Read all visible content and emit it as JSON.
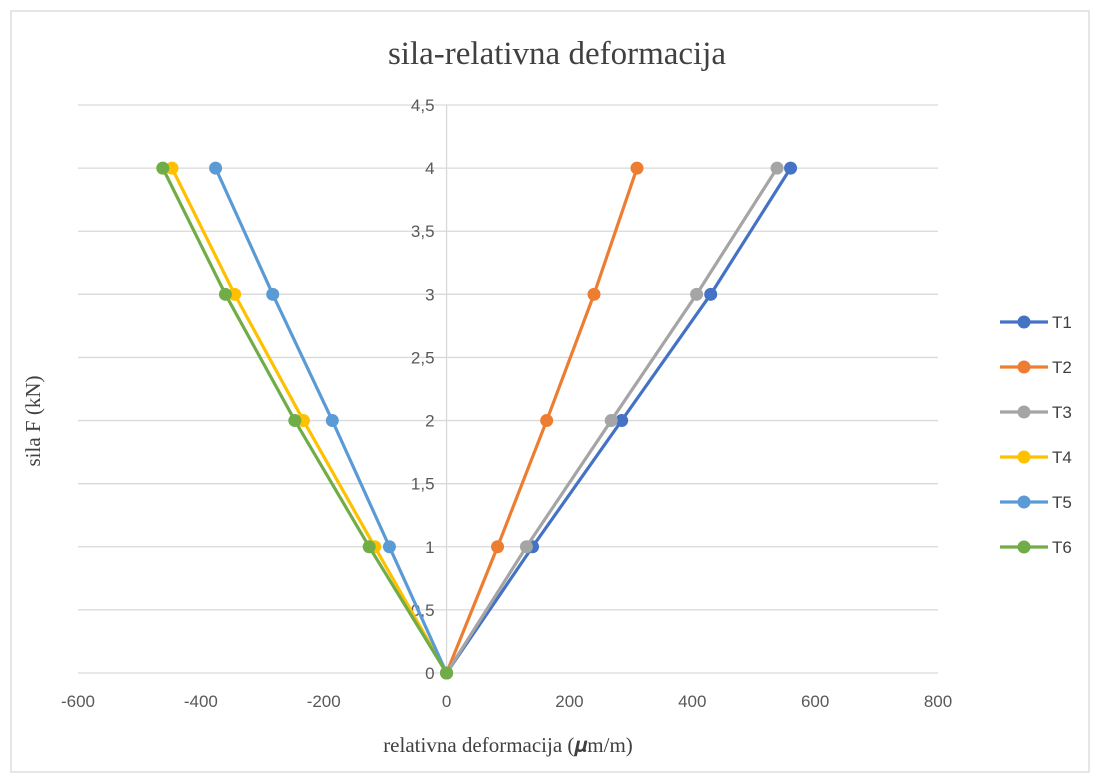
{
  "chart_data": {
    "type": "line",
    "title": "sila-relativna deformacija",
    "xlabel": "relativna deformacija (𝝁m/m)",
    "ylabel": "sila F (kN)",
    "xlim": [
      -600,
      800
    ],
    "ylim": [
      0,
      4.5
    ],
    "xticks": [
      -600,
      -400,
      -200,
      0,
      200,
      400,
      600,
      800
    ],
    "xtick_labels": [
      "-600",
      "-400",
      "-200",
      "0",
      "200",
      "400",
      "600",
      "800"
    ],
    "yticks": [
      0,
      0.5,
      1,
      1.5,
      2,
      2.5,
      3,
      3.5,
      4,
      4.5
    ],
    "ytick_labels": [
      "0",
      "0,5",
      "1",
      "1,5",
      "2",
      "2,5",
      "3",
      "3,5",
      "4",
      "4,5"
    ],
    "grid": "horizontal",
    "legend_position": "right",
    "series": [
      {
        "name": "T1",
        "color": "#4472C4",
        "points": [
          [
            0,
            0
          ],
          [
            140,
            1
          ],
          [
            285,
            2
          ],
          [
            430,
            3
          ],
          [
            560,
            4
          ]
        ]
      },
      {
        "name": "T2",
        "color": "#ED7D31",
        "points": [
          [
            0,
            0
          ],
          [
            83,
            1
          ],
          [
            163,
            2
          ],
          [
            240,
            3
          ],
          [
            310,
            4
          ]
        ]
      },
      {
        "name": "T3",
        "color": "#A5A5A5",
        "points": [
          [
            0,
            0
          ],
          [
            130,
            1
          ],
          [
            268,
            2
          ],
          [
            407,
            3
          ],
          [
            538,
            4
          ]
        ]
      },
      {
        "name": "T4",
        "color": "#FFC000",
        "points": [
          [
            0,
            0
          ],
          [
            -117,
            1
          ],
          [
            -233,
            2
          ],
          [
            -345,
            3
          ],
          [
            -447,
            4
          ]
        ]
      },
      {
        "name": "T5",
        "color": "#5B9BD5",
        "points": [
          [
            0,
            0
          ],
          [
            -93,
            1
          ],
          [
            -186,
            2
          ],
          [
            -283,
            3
          ],
          [
            -376,
            4
          ]
        ]
      },
      {
        "name": "T6",
        "color": "#70AD47",
        "points": [
          [
            0,
            0
          ],
          [
            -126,
            1
          ],
          [
            -247,
            2
          ],
          [
            -360,
            3
          ],
          [
            -462,
            4
          ]
        ]
      }
    ]
  }
}
